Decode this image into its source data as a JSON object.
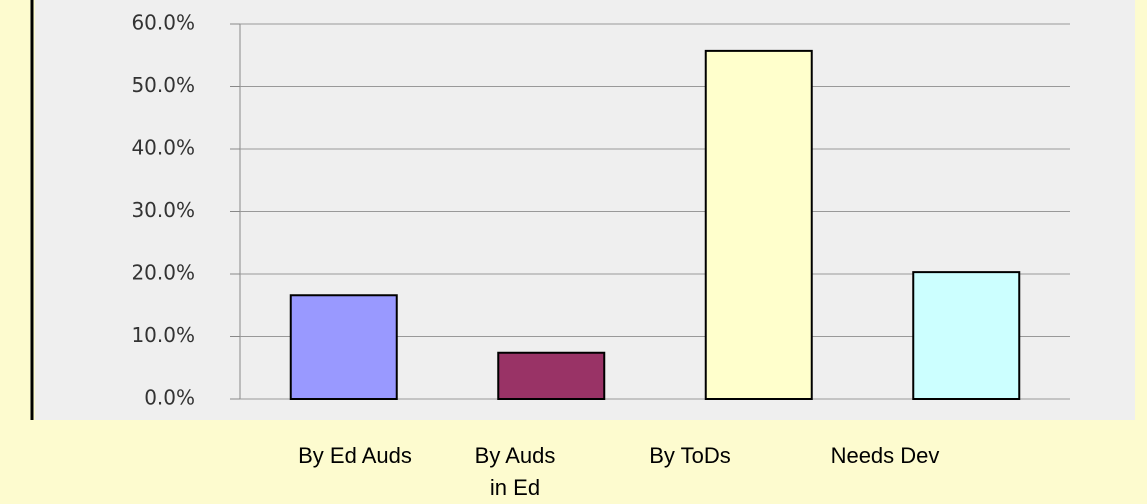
{
  "chart_data": {
    "type": "bar",
    "categories": [
      "By Ed Auds",
      "By Auds in Ed",
      "By ToDs",
      "Needs Dev"
    ],
    "values": [
      16.6,
      7.4,
      55.7,
      20.3
    ],
    "colors": [
      "#9999ff",
      "#993366",
      "#ffffcc",
      "#ccffff"
    ],
    "ylim": [
      0,
      60
    ],
    "yticks": [
      {
        "value": 0,
        "label": "0.0%"
      },
      {
        "value": 10,
        "label": "10.0%"
      },
      {
        "value": 20,
        "label": "20.0%"
      },
      {
        "value": 30,
        "label": "30.0%"
      },
      {
        "value": 40,
        "label": "40.0%"
      },
      {
        "value": 50,
        "label": "50.0%"
      },
      {
        "value": 60,
        "label": "60.0%"
      }
    ],
    "grid": true
  }
}
